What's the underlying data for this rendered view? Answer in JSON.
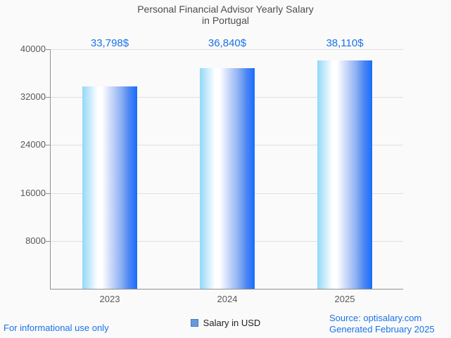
{
  "title": {
    "line1": "Personal Financial Advisor Yearly Salary",
    "line2": "in Portugal"
  },
  "chart_data": {
    "type": "bar",
    "title": "Personal Financial Advisor Yearly Salary in Portugal",
    "categories": [
      "2023",
      "2024",
      "2025"
    ],
    "values": [
      33798,
      36840,
      38110
    ],
    "value_labels": [
      "33,798$",
      "36,840$",
      "38,110$"
    ],
    "series_name": "Salary in USD",
    "xlabel": "",
    "ylabel": "",
    "ylim": [
      0,
      40000
    ],
    "yticks": [
      8000,
      16000,
      24000,
      32000,
      40000
    ],
    "grid": "horizontal",
    "legend_position": "bottom-center",
    "bar_gradient": [
      {
        "color": "#93d7f8",
        "pos": 0
      },
      {
        "color": "#ffffff",
        "pos": 28
      },
      {
        "color": "#ffffff",
        "pos": 36
      },
      {
        "color": "#ccd9f9",
        "pos": 52
      },
      {
        "color": "#8fb2f3",
        "pos": 70
      },
      {
        "color": "#4f87f2",
        "pos": 85
      },
      {
        "color": "#176dfe",
        "pos": 100
      }
    ]
  },
  "legend": {
    "label": "Salary in USD",
    "swatch_fill": "#6699dd",
    "swatch_border": "#4a7cb8"
  },
  "footer": {
    "left": "For informational use only",
    "source": "Source: optisalary.com",
    "generated": "Generated February 2025"
  },
  "colors": {
    "accent_blue": "#1a73e8",
    "title_gray": "#4d4d4d",
    "axis_line_gray": "#909090",
    "grid_gray": "#e0e0e0",
    "tick_text_gray": "#595959",
    "background": "#fafafa"
  }
}
